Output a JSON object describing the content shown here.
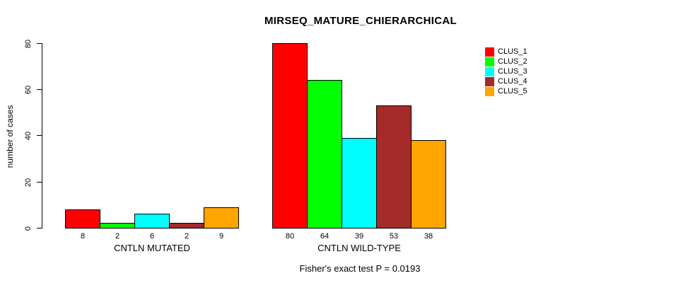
{
  "title": "MIRSEQ_MATURE_CHIERARCHICAL",
  "footer": "Fisher's exact test P = 0.0193",
  "y_axis": {
    "label": "number of cases",
    "ticks": [
      0,
      20,
      40,
      60,
      80
    ]
  },
  "legend": {
    "items": [
      {
        "label": "CLUS_1",
        "color": "#FF0000"
      },
      {
        "label": "CLUS_2",
        "color": "#00FF00"
      },
      {
        "label": "CLUS_3",
        "color": "#00FFFF"
      },
      {
        "label": "CLUS_4",
        "color": "#A52A2A"
      },
      {
        "label": "CLUS_5",
        "color": "#FFA500"
      }
    ]
  },
  "chart_data": {
    "type": "bar",
    "title": "MIRSEQ_MATURE_CHIERARCHICAL",
    "xlabel": "",
    "ylabel": "number of cases",
    "ylim": [
      0,
      80
    ],
    "grid": false,
    "legend_position": "top-right",
    "bar_value_labels_shown": true,
    "categories": [
      "CNTLN MUTATED",
      "CNTLN WILD-TYPE"
    ],
    "series": [
      {
        "name": "CLUS_1",
        "color": "#FF0000",
        "values": [
          8,
          80
        ]
      },
      {
        "name": "CLUS_2",
        "color": "#00FF00",
        "values": [
          2,
          64
        ]
      },
      {
        "name": "CLUS_3",
        "color": "#00FFFF",
        "values": [
          6,
          39
        ]
      },
      {
        "name": "CLUS_4",
        "color": "#A52A2A",
        "values": [
          2,
          53
        ]
      },
      {
        "name": "CLUS_5",
        "color": "#FFA500",
        "values": [
          9,
          38
        ]
      }
    ],
    "annotation": "Fisher's exact test P = 0.0193"
  }
}
